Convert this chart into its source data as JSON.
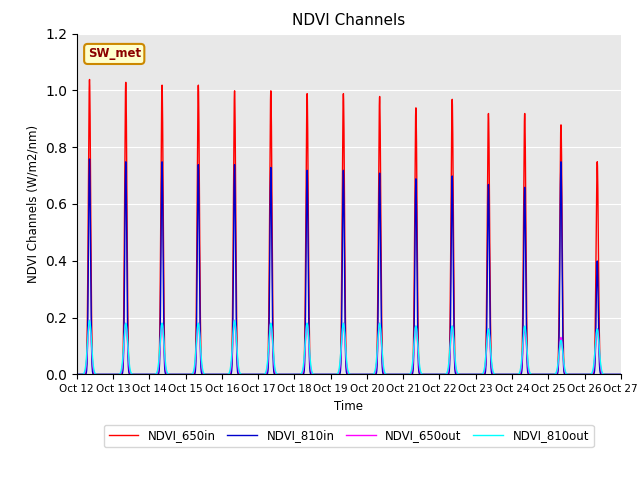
{
  "title": "NDVI Channels",
  "ylabel": "NDVI Channels (W/m2/nm)",
  "xlabel": "Time",
  "annotation": "SW_met",
  "ylim": [
    0.0,
    1.2
  ],
  "x_tick_labels": [
    "Oct 12",
    "Oct 13",
    "Oct 14",
    "Oct 15",
    "Oct 16",
    "Oct 17",
    "Oct 18",
    "Oct 19",
    "Oct 20",
    "Oct 21",
    "Oct 22",
    "Oct 23",
    "Oct 24",
    "Oct 25",
    "Oct 26",
    "Oct 27"
  ],
  "num_cycles": 15,
  "bg_color": "#e8e8e8",
  "legend_entries": [
    "NDVI_650in",
    "NDVI_810in",
    "NDVI_650out",
    "NDVI_810out"
  ],
  "line_colors": [
    "#ff0000",
    "#0000cc",
    "#ff00ff",
    "#00ffff"
  ],
  "peak_650in": [
    1.04,
    1.03,
    1.02,
    1.02,
    1.0,
    1.0,
    0.99,
    0.99,
    0.98,
    0.94,
    0.97,
    0.92,
    0.92,
    0.88,
    0.75
  ],
  "peak_810in": [
    0.76,
    0.75,
    0.75,
    0.74,
    0.74,
    0.73,
    0.72,
    0.72,
    0.71,
    0.69,
    0.7,
    0.67,
    0.66,
    0.75,
    0.4
  ],
  "peak_650out": [
    0.19,
    0.18,
    0.18,
    0.18,
    0.19,
    0.18,
    0.18,
    0.18,
    0.18,
    0.17,
    0.17,
    0.16,
    0.16,
    0.13,
    0.16
  ],
  "peak_810out": [
    0.19,
    0.18,
    0.18,
    0.18,
    0.19,
    0.18,
    0.18,
    0.18,
    0.18,
    0.17,
    0.17,
    0.16,
    0.17,
    0.12,
    0.16
  ],
  "spike_offset": [
    0.35,
    0.35,
    0.35,
    0.35,
    0.35,
    0.35,
    0.35,
    0.35,
    0.35,
    0.35,
    0.35,
    0.35,
    0.35,
    0.35,
    0.35
  ]
}
